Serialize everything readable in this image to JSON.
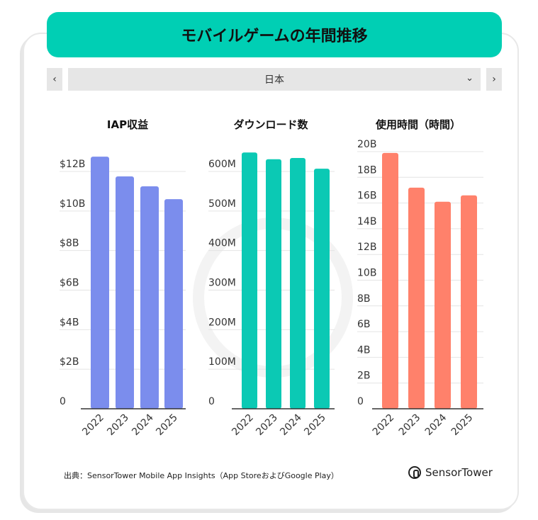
{
  "title": "モバイルゲームの年間推移",
  "selector": {
    "value": "日本",
    "prev_icon": "chevron-left-icon",
    "next_icon": "chevron-right-icon",
    "dropdown_icon": "chevron-down-icon"
  },
  "chart_data": [
    {
      "type": "bar",
      "title": "IAP収益",
      "categories": [
        "2022",
        "2023",
        "2024",
        "2025"
      ],
      "values": [
        12.75,
        11.75,
        11.25,
        10.6
      ],
      "unit": "B USD",
      "ylim": [
        0,
        13
      ],
      "yticks": [
        0,
        2,
        4,
        6,
        8,
        10,
        12
      ],
      "ytick_labels": [
        "0",
        "$2B",
        "$4B",
        "$6B",
        "$8B",
        "$10B",
        "$12B"
      ],
      "color": "#7b8ded",
      "grid": true
    },
    {
      "type": "bar",
      "title": "ダウンロード数",
      "categories": [
        "2022",
        "2023",
        "2024",
        "2025"
      ],
      "values": [
        648,
        631,
        634,
        607
      ],
      "unit": "M",
      "ylim": [
        0,
        650
      ],
      "yticks": [
        0,
        100,
        200,
        300,
        400,
        500,
        600
      ],
      "ytick_labels": [
        "0",
        "100M",
        "200M",
        "300M",
        "400M",
        "500M",
        "600M"
      ],
      "color": "#0bc9b4",
      "grid": true
    },
    {
      "type": "bar",
      "title": "使用時間（時間）",
      "categories": [
        "2022",
        "2023",
        "2024",
        "2025"
      ],
      "values": [
        19.9,
        17.2,
        16.1,
        16.6
      ],
      "unit": "B",
      "ylim": [
        0,
        20
      ],
      "yticks": [
        0,
        2,
        4,
        6,
        8,
        10,
        12,
        14,
        16,
        18,
        20
      ],
      "ytick_labels": [
        "0",
        "2B",
        "4B",
        "6B",
        "8B",
        "10B",
        "12B",
        "14B",
        "16B",
        "18B",
        "20B"
      ],
      "color": "#ff816b",
      "grid": true
    }
  ],
  "footer": {
    "source": "出典：SensorTower Mobile App Insights（App StoreおよびGoogle Play）",
    "logo": "SensorTower"
  }
}
